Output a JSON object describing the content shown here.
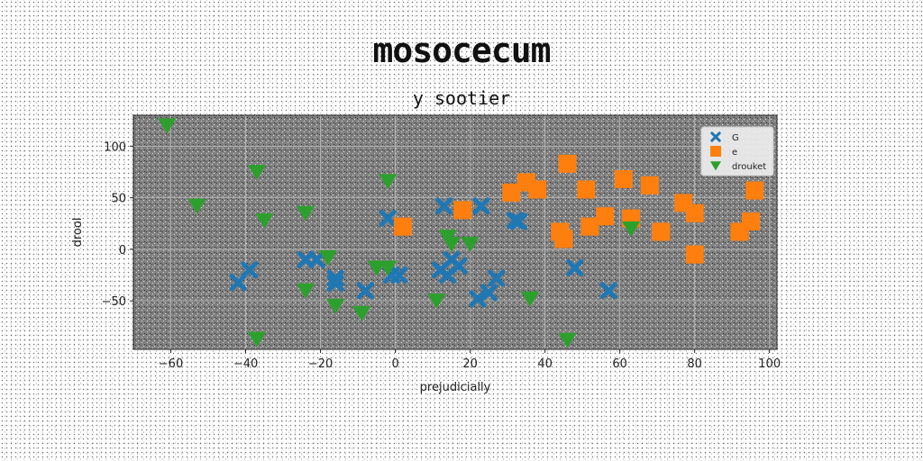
{
  "suptitle": "mosocecum",
  "title": "y sootier",
  "chart_data": {
    "type": "scatter",
    "xlabel": "prejudicially",
    "ylabel": "drool",
    "xlim": [
      -70,
      102
    ],
    "ylim": [
      -97,
      130
    ],
    "xticks": [
      -60,
      -40,
      -20,
      0,
      20,
      40,
      60,
      80,
      100
    ],
    "yticks": [
      -50,
      0,
      50,
      100
    ],
    "grid": true,
    "legend_position": "top-right",
    "background": "#808080",
    "series": [
      {
        "name": "G",
        "marker": "x",
        "color": "#1f77b4",
        "points": [
          [
            -42,
            -32
          ],
          [
            -39,
            -20
          ],
          [
            -24,
            -10
          ],
          [
            -21,
            -10
          ],
          [
            -16,
            -28
          ],
          [
            -16,
            -33
          ],
          [
            -8,
            -40
          ],
          [
            -2,
            30
          ],
          [
            -1,
            -25
          ],
          [
            1,
            -25
          ],
          [
            12,
            -20
          ],
          [
            13,
            42
          ],
          [
            14,
            -25
          ],
          [
            15,
            -10
          ],
          [
            17,
            -16
          ],
          [
            22,
            -48
          ],
          [
            23,
            42
          ],
          [
            25,
            -42
          ],
          [
            27,
            -28
          ],
          [
            32,
            28
          ],
          [
            33,
            27
          ],
          [
            48,
            -18
          ],
          [
            57,
            -40
          ]
        ]
      },
      {
        "name": "e",
        "marker": "s",
        "color": "#ff7f0e",
        "points": [
          [
            2,
            22
          ],
          [
            18,
            38
          ],
          [
            31,
            55
          ],
          [
            35,
            65
          ],
          [
            38,
            58
          ],
          [
            44,
            17
          ],
          [
            45,
            10
          ],
          [
            46,
            83
          ],
          [
            51,
            58
          ],
          [
            52,
            22
          ],
          [
            56,
            32
          ],
          [
            61,
            68
          ],
          [
            63,
            30
          ],
          [
            68,
            62
          ],
          [
            71,
            17
          ],
          [
            77,
            45
          ],
          [
            80,
            35
          ],
          [
            80,
            -5
          ],
          [
            92,
            17
          ],
          [
            95,
            27
          ],
          [
            96,
            57
          ]
        ]
      },
      {
        "name": "drouket",
        "marker": "v",
        "color": "#2ca02c",
        "points": [
          [
            -61,
            120
          ],
          [
            -53,
            42
          ],
          [
            -37,
            75
          ],
          [
            -35,
            28
          ],
          [
            -37,
            -87
          ],
          [
            -24,
            35
          ],
          [
            -24,
            -40
          ],
          [
            -18,
            -8
          ],
          [
            -16,
            -55
          ],
          [
            -9,
            -62
          ],
          [
            -5,
            -18
          ],
          [
            -2,
            -18
          ],
          [
            -2,
            66
          ],
          [
            11,
            -50
          ],
          [
            14,
            12
          ],
          [
            15,
            5
          ],
          [
            20,
            5
          ],
          [
            36,
            -48
          ],
          [
            46,
            -88
          ],
          [
            63,
            20
          ]
        ]
      }
    ]
  }
}
